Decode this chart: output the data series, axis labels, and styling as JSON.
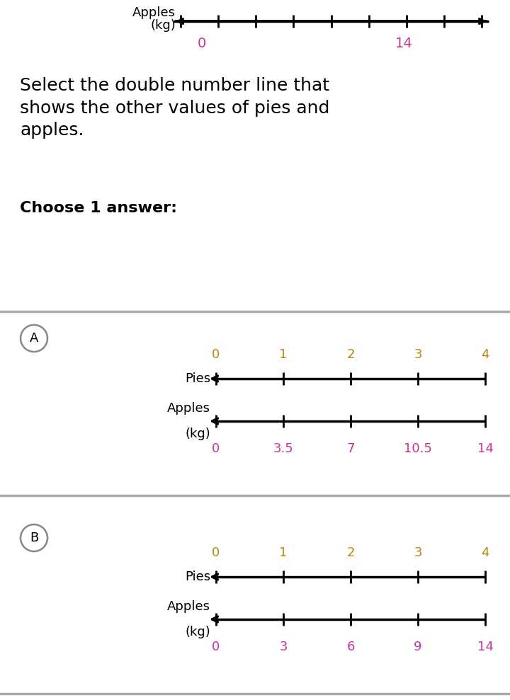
{
  "bg_color": "#ffffff",
  "top_line": {
    "apples_label_top": "Apples",
    "apples_label_bot": "(kg)",
    "tick_vals": [
      0,
      14
    ],
    "tick_labels_colors": [
      "#cc3399",
      "#cc3399"
    ],
    "num_ticks": 9,
    "line_color": "#000000",
    "lw": 2.5
  },
  "question_text": "Select the double number line that\nshows the other values of pies and\napples.",
  "choose_text": "Choose 1 answer:",
  "text_color": "#000000",
  "separator_color": "#aaaaaa",
  "options": [
    {
      "label": "A",
      "pies_ticks": [
        "0",
        "1",
        "2",
        "3",
        "4"
      ],
      "pies_color": "#b8860b",
      "apples_ticks": [
        "0",
        "3.5",
        "7",
        "10.5",
        "14"
      ],
      "apples_color": "#cc3399",
      "num_intervals": 4
    },
    {
      "label": "B",
      "pies_ticks": [
        "0",
        "1",
        "2",
        "3",
        "4"
      ],
      "pies_color": "#b8860b",
      "apples_ticks": [
        "0",
        "3",
        "6",
        "9",
        "14"
      ],
      "apples_color": "#cc3399",
      "num_intervals": 4
    }
  ]
}
